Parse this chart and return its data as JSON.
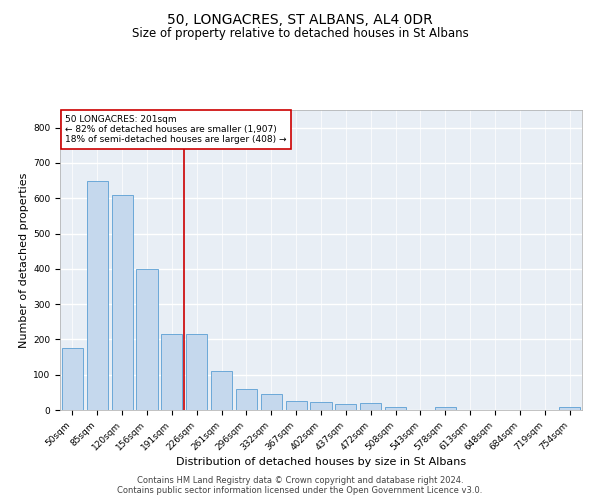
{
  "title": "50, LONGACRES, ST ALBANS, AL4 0DR",
  "subtitle": "Size of property relative to detached houses in St Albans",
  "xlabel": "Distribution of detached houses by size in St Albans",
  "ylabel": "Number of detached properties",
  "categories": [
    "50sqm",
    "85sqm",
    "120sqm",
    "156sqm",
    "191sqm",
    "226sqm",
    "261sqm",
    "296sqm",
    "332sqm",
    "367sqm",
    "402sqm",
    "437sqm",
    "472sqm",
    "508sqm",
    "543sqm",
    "578sqm",
    "613sqm",
    "648sqm",
    "684sqm",
    "719sqm",
    "754sqm"
  ],
  "values": [
    175,
    650,
    610,
    400,
    215,
    215,
    110,
    60,
    45,
    25,
    22,
    18,
    20,
    8,
    0,
    8,
    0,
    0,
    0,
    0,
    8
  ],
  "bar_color": "#c5d8ed",
  "bar_edge_color": "#5a9fd4",
  "annotation_text": "50 LONGACRES: 201sqm\n← 82% of detached houses are smaller (1,907)\n18% of semi-detached houses are larger (408) →",
  "annotation_box_color": "#ffffff",
  "annotation_box_edge": "#cc0000",
  "vline_color": "#cc0000",
  "vline_pos": 4.5,
  "footer_line1": "Contains HM Land Registry data © Crown copyright and database right 2024.",
  "footer_line2": "Contains public sector information licensed under the Open Government Licence v3.0.",
  "ylim": [
    0,
    850
  ],
  "yticks": [
    0,
    100,
    200,
    300,
    400,
    500,
    600,
    700,
    800
  ],
  "bg_color": "#e8eef5",
  "grid_color": "#ffffff",
  "title_fontsize": 10,
  "subtitle_fontsize": 8.5,
  "axis_label_fontsize": 8,
  "tick_fontsize": 6.5,
  "annotation_fontsize": 6.5,
  "footer_fontsize": 6
}
